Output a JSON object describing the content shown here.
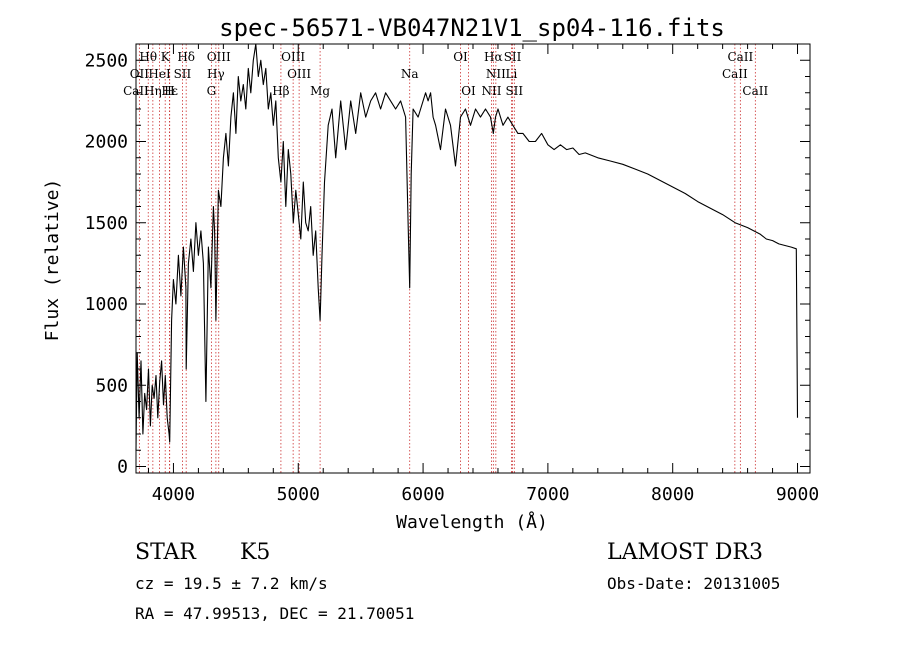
{
  "chart_data": {
    "type": "line",
    "title": "spec-56571-VB047N21V1_sp04-116.fits",
    "xlabel": "Wavelength (Å)",
    "ylabel": "Flux (relative)",
    "xlim": [
      3700,
      9100
    ],
    "ylim": [
      -40,
      2600
    ],
    "xticks": [
      4000,
      5000,
      6000,
      7000,
      8000,
      9000
    ],
    "yticks": [
      0,
      500,
      1000,
      1500,
      2000,
      2500
    ],
    "series": [
      {
        "name": "flux",
        "x": [
          3700,
          3710,
          3725,
          3740,
          3755,
          3770,
          3785,
          3800,
          3815,
          3830,
          3845,
          3860,
          3875,
          3890,
          3905,
          3920,
          3935,
          3950,
          3965,
          3970,
          3985,
          4000,
          4020,
          4040,
          4060,
          4080,
          4100,
          4102,
          4120,
          4140,
          4160,
          4180,
          4200,
          4220,
          4240,
          4260,
          4280,
          4300,
          4320,
          4330,
          4340,
          4360,
          4380,
          4400,
          4420,
          4440,
          4460,
          4480,
          4500,
          4520,
          4540,
          4560,
          4580,
          4600,
          4620,
          4640,
          4660,
          4680,
          4700,
          4720,
          4740,
          4760,
          4780,
          4800,
          4820,
          4840,
          4861,
          4880,
          4900,
          4920,
          4940,
          4960,
          4980,
          5000,
          5020,
          5040,
          5060,
          5080,
          5100,
          5120,
          5140,
          5160,
          5175,
          5190,
          5210,
          5240,
          5270,
          5300,
          5340,
          5380,
          5420,
          5460,
          5500,
          5540,
          5580,
          5620,
          5660,
          5700,
          5740,
          5780,
          5820,
          5860,
          5880,
          5893,
          5905,
          5920,
          5960,
          6000,
          6020,
          6040,
          6060,
          6080,
          6100,
          6140,
          6180,
          6220,
          6260,
          6300,
          6340,
          6380,
          6420,
          6460,
          6500,
          6540,
          6563,
          6580,
          6600,
          6640,
          6680,
          6720,
          6760,
          6800,
          6850,
          6900,
          6950,
          7000,
          7050,
          7100,
          7150,
          7200,
          7250,
          7300,
          7400,
          7500,
          7600,
          7700,
          7800,
          7900,
          8000,
          8100,
          8200,
          8300,
          8400,
          8500,
          8600,
          8700,
          8750,
          8800,
          8850,
          8900,
          8950,
          8990,
          9000
        ],
        "y": [
          100,
          700,
          300,
          650,
          200,
          450,
          350,
          600,
          250,
          500,
          420,
          560,
          300,
          520,
          650,
          380,
          560,
          300,
          200,
          150,
          900,
          1150,
          1000,
          1300,
          1050,
          1350,
          1100,
          600,
          1250,
          1400,
          1200,
          1500,
          1300,
          1450,
          1250,
          400,
          1350,
          1100,
          1600,
          1450,
          900,
          1700,
          1600,
          1900,
          2050,
          1850,
          2150,
          2300,
          2050,
          2400,
          2250,
          2350,
          2200,
          2450,
          2300,
          2500,
          2600,
          2400,
          2500,
          2350,
          2450,
          2200,
          2300,
          2100,
          2250,
          1900,
          1750,
          2000,
          1600,
          1950,
          1800,
          1500,
          1700,
          1550,
          1400,
          1750,
          1500,
          1450,
          1600,
          1300,
          1450,
          1100,
          900,
          1300,
          1750,
          2100,
          2200,
          1900,
          2250,
          1950,
          2250,
          2050,
          2300,
          2150,
          2250,
          2300,
          2200,
          2300,
          2250,
          2200,
          2250,
          2150,
          1500,
          1100,
          1800,
          2200,
          2150,
          2250,
          2300,
          2250,
          2300,
          2150,
          2100,
          1950,
          2200,
          2100,
          1850,
          2150,
          2200,
          2100,
          2200,
          2150,
          2200,
          2150,
          2050,
          2150,
          2200,
          2100,
          2150,
          2100,
          2050,
          2050,
          2000,
          2000,
          2050,
          1980,
          1950,
          1980,
          1950,
          1960,
          1920,
          1930,
          1900,
          1880,
          1860,
          1830,
          1800,
          1760,
          1720,
          1680,
          1630,
          1590,
          1550,
          1500,
          1470,
          1430,
          1400,
          1390,
          1370,
          1360,
          1350,
          1340,
          300
        ]
      }
    ],
    "spectral_lines": [
      {
        "name": "Hθ",
        "x": 3798,
        "row": 0
      },
      {
        "name": "K",
        "x": 3934,
        "row": 0
      },
      {
        "name": "Hδ",
        "x": 4102,
        "row": 0
      },
      {
        "name": "OIII",
        "x": 4363,
        "row": 0
      },
      {
        "name": "OIII",
        "x": 4959,
        "row": 0
      },
      {
        "name": "OI",
        "x": 6300,
        "row": 0
      },
      {
        "name": "Hα",
        "x": 6563,
        "row": 0
      },
      {
        "name": "SII",
        "x": 6717,
        "row": 0
      },
      {
        "name": "CaII",
        "x": 8542,
        "row": 0
      },
      {
        "name": "OII",
        "x": 3727,
        "row": 1
      },
      {
        "name": "HeI",
        "x": 3889,
        "row": 1
      },
      {
        "name": "SII",
        "x": 4072,
        "row": 1
      },
      {
        "name": "Hγ",
        "x": 4340,
        "row": 1
      },
      {
        "name": "OIII",
        "x": 5007,
        "row": 1
      },
      {
        "name": "Na",
        "x": 5893,
        "row": 1
      },
      {
        "name": "NII",
        "x": 6583,
        "row": 1
      },
      {
        "name": "Li",
        "x": 6708,
        "row": 1
      },
      {
        "name": "CaII",
        "x": 8498,
        "row": 1
      },
      {
        "name": "CaII",
        "x": 3700,
        "row": 2
      },
      {
        "name": "Hε",
        "x": 3970,
        "row": 2
      },
      {
        "name": "Hη",
        "x": 3835,
        "row": 2
      },
      {
        "name": "H",
        "x": 3968,
        "row": 2
      },
      {
        "name": "G",
        "x": 4304,
        "row": 2
      },
      {
        "name": "Hβ",
        "x": 4861,
        "row": 2
      },
      {
        "name": "Mg",
        "x": 5175,
        "row": 2
      },
      {
        "name": "OI",
        "x": 6364,
        "row": 2
      },
      {
        "name": "NII",
        "x": 6548,
        "row": 2
      },
      {
        "name": "SII",
        "x": 6731,
        "row": 2
      },
      {
        "name": "CaII",
        "x": 8662,
        "row": 2
      }
    ]
  },
  "info": {
    "object_class": "STAR",
    "subclass": "K5",
    "survey": "LAMOST DR3",
    "redshift": "cz = 19.5 ± 7.2 km/s",
    "obs_date": "Obs-Date: 20131005",
    "coords": "RA =  47.99513, DEC =  21.70051"
  },
  "colors": {
    "line": "#000000",
    "marker_line": "#cc3333",
    "background": "#ffffff"
  }
}
